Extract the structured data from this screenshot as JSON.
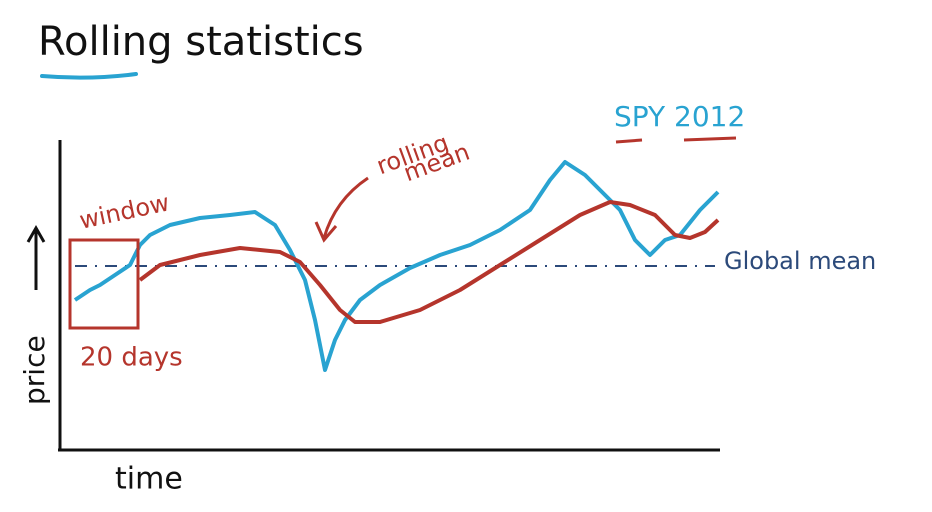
{
  "header": {
    "title": "Rolling statistics"
  },
  "legend": {
    "label": "SPY 2012"
  },
  "annotations": {
    "window": "window",
    "window_size": "20 days",
    "rolling_mean_line1": "rolling",
    "rolling_mean_line2": "mean",
    "global_mean": "Global mean"
  },
  "axes": {
    "y_label": "price",
    "x_label": "time"
  }
}
